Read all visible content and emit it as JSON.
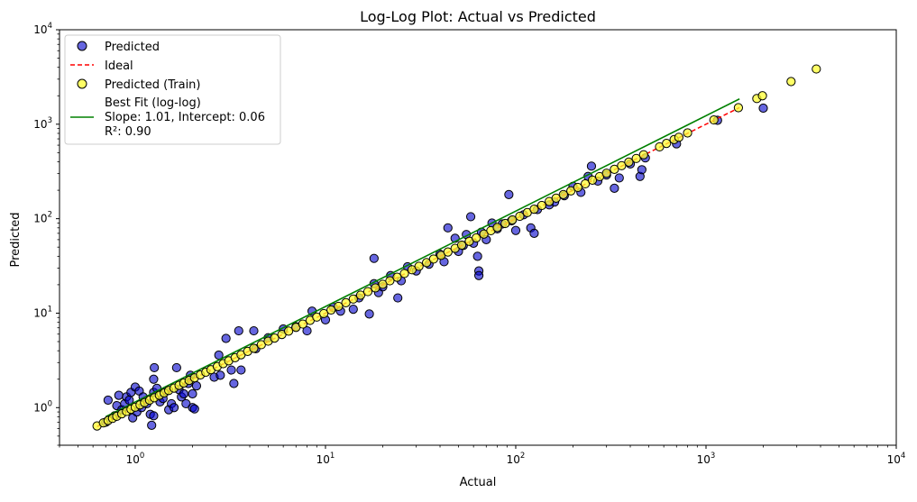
{
  "chart_data": {
    "type": "scatter",
    "title": "Log-Log Plot: Actual vs Predicted",
    "xlabel": "Actual",
    "ylabel": "Predicted",
    "xscale": "log",
    "yscale": "log",
    "xlim": [
      0.4,
      10000
    ],
    "ylim": [
      0.4,
      10000
    ],
    "x_ticks": [
      {
        "base": "10",
        "exp": "0",
        "value": 1
      },
      {
        "base": "10",
        "exp": "1",
        "value": 10
      },
      {
        "base": "10",
        "exp": "2",
        "value": 100
      },
      {
        "base": "10",
        "exp": "3",
        "value": 1000
      },
      {
        "base": "10",
        "exp": "4",
        "value": 10000
      }
    ],
    "y_ticks": [
      {
        "base": "10",
        "exp": "0",
        "value": 1
      },
      {
        "base": "10",
        "exp": "1",
        "value": 10
      },
      {
        "base": "10",
        "exp": "2",
        "value": 100
      },
      {
        "base": "10",
        "exp": "3",
        "value": 1000
      },
      {
        "base": "10",
        "exp": "4",
        "value": 10000
      }
    ],
    "grid": false,
    "legend": {
      "position": "top-left",
      "entries": [
        {
          "label": "Predicted",
          "marker": "circle"
        },
        {
          "label": "Ideal",
          "marker": "dashed-line"
        },
        {
          "label": "Predicted (Train)",
          "marker": "circle"
        },
        {
          "label_lines": [
            "Best Fit (log-log)",
            "Slope: 1.01, Intercept: 0.06",
            "R²: 0.90"
          ],
          "marker": "line"
        }
      ]
    },
    "colors": {
      "predicted": "#0000cc",
      "train": "#ffff33",
      "ideal": "#ff0000",
      "fit": "#008000"
    },
    "ideal_line": {
      "x": [
        0.63,
        1500
      ],
      "y": [
        0.63,
        1500
      ]
    },
    "best_fit": {
      "slope": 1.01,
      "intercept": 0.06,
      "r2": 0.9,
      "x_range": [
        0.7,
        1500
      ]
    },
    "series": [
      {
        "name": "Predicted",
        "points": [
          [
            0.7,
            0.7
          ],
          [
            0.72,
            1.2
          ],
          [
            0.78,
            0.82
          ],
          [
            0.8,
            1.05
          ],
          [
            0.82,
            1.35
          ],
          [
            0.85,
            0.95
          ],
          [
            0.88,
            1.1
          ],
          [
            0.9,
            1.3
          ],
          [
            0.93,
            1.2
          ],
          [
            0.95,
            1.45
          ],
          [
            0.97,
            0.78
          ],
          [
            1.0,
            1.65
          ],
          [
            1.02,
            0.9
          ],
          [
            1.05,
            1.5
          ],
          [
            1.08,
            1.0
          ],
          [
            1.1,
            1.3
          ],
          [
            1.15,
            1.1
          ],
          [
            1.2,
            0.85
          ],
          [
            1.22,
            0.65
          ],
          [
            1.25,
            0.82
          ],
          [
            1.25,
            1.45
          ],
          [
            1.25,
            2.0
          ],
          [
            1.26,
            2.65
          ],
          [
            1.3,
            1.6
          ],
          [
            1.35,
            1.15
          ],
          [
            1.4,
            1.25
          ],
          [
            1.45,
            1.5
          ],
          [
            1.5,
            0.95
          ],
          [
            1.55,
            1.1
          ],
          [
            1.6,
            1.0
          ],
          [
            1.65,
            2.65
          ],
          [
            1.7,
            1.55
          ],
          [
            1.75,
            1.3
          ],
          [
            1.8,
            1.4
          ],
          [
            1.85,
            1.1
          ],
          [
            1.9,
            1.8
          ],
          [
            1.95,
            2.2
          ],
          [
            2.0,
            1.4
          ],
          [
            2.0,
            1.0
          ],
          [
            2.05,
            0.97
          ],
          [
            2.1,
            1.7
          ],
          [
            2.6,
            2.1
          ],
          [
            2.75,
            3.6
          ],
          [
            2.8,
            2.2
          ],
          [
            3.0,
            5.4
          ],
          [
            3.2,
            2.5
          ],
          [
            3.3,
            1.8
          ],
          [
            3.5,
            6.5
          ],
          [
            3.6,
            2.5
          ],
          [
            4.2,
            6.5
          ],
          [
            4.3,
            4.2
          ],
          [
            5.0,
            5.5
          ],
          [
            6.0,
            6.8
          ],
          [
            7.0,
            7.2
          ],
          [
            8.0,
            6.5
          ],
          [
            8.5,
            10.5
          ],
          [
            10.0,
            8.5
          ],
          [
            11.0,
            11.5
          ],
          [
            12.0,
            10.5
          ],
          [
            14.0,
            11.0
          ],
          [
            15.0,
            14.5
          ],
          [
            17.0,
            9.8
          ],
          [
            18.0,
            20.5
          ],
          [
            18.0,
            38.0
          ],
          [
            19.0,
            16.5
          ],
          [
            20.0,
            19.0
          ],
          [
            22.0,
            25.0
          ],
          [
            24.0,
            14.5
          ],
          [
            25.0,
            22.0
          ],
          [
            27.0,
            31.0
          ],
          [
            30.0,
            28.0
          ],
          [
            35.0,
            33.0
          ],
          [
            40.0,
            42.0
          ],
          [
            42.0,
            35.0
          ],
          [
            44.0,
            80.0
          ],
          [
            48.0,
            62.0
          ],
          [
            50.0,
            45.0
          ],
          [
            53.0,
            52.0
          ],
          [
            55.0,
            68.0
          ],
          [
            58.0,
            105.0
          ],
          [
            60.0,
            55.0
          ],
          [
            63.0,
            40.0
          ],
          [
            64.0,
            28.0
          ],
          [
            64.0,
            25.0
          ],
          [
            66.0,
            72.0
          ],
          [
            70.0,
            60.0
          ],
          [
            75.0,
            90.0
          ],
          [
            80.0,
            78.0
          ],
          [
            85.0,
            88.0
          ],
          [
            92.0,
            180.0
          ],
          [
            95.0,
            95.0
          ],
          [
            100.0,
            75.0
          ],
          [
            110.0,
            110.0
          ],
          [
            120.0,
            80.0
          ],
          [
            125.0,
            70.0
          ],
          [
            130.0,
            125.0
          ],
          [
            150.0,
            140.0
          ],
          [
            160.0,
            150.0
          ],
          [
            180.0,
            175.0
          ],
          [
            200.0,
            220.0
          ],
          [
            220.0,
            190.0
          ],
          [
            240.0,
            280.0
          ],
          [
            250.0,
            360.0
          ],
          [
            270.0,
            250.0
          ],
          [
            300.0,
            290.0
          ],
          [
            330.0,
            210.0
          ],
          [
            350.0,
            270.0
          ],
          [
            400.0,
            380.0
          ],
          [
            450.0,
            280.0
          ],
          [
            460.0,
            330.0
          ],
          [
            480.0,
            440.0
          ],
          [
            700.0,
            620.0
          ],
          [
            1150.0,
            1100.0
          ],
          [
            2000.0,
            1480.0
          ]
        ]
      },
      {
        "name": "Predicted (Train)",
        "points": [
          [
            0.63,
            0.64
          ],
          [
            0.68,
            0.69
          ],
          [
            0.72,
            0.73
          ],
          [
            0.76,
            0.77
          ],
          [
            0.8,
            0.81
          ],
          [
            0.85,
            0.86
          ],
          [
            0.9,
            0.91
          ],
          [
            0.95,
            0.96
          ],
          [
            1.0,
            1.01
          ],
          [
            1.06,
            1.07
          ],
          [
            1.12,
            1.13
          ],
          [
            1.19,
            1.2
          ],
          [
            1.26,
            1.27
          ],
          [
            1.34,
            1.35
          ],
          [
            1.42,
            1.43
          ],
          [
            1.5,
            1.52
          ],
          [
            1.6,
            1.61
          ],
          [
            1.7,
            1.72
          ],
          [
            1.8,
            1.82
          ],
          [
            1.92,
            1.94
          ],
          [
            2.05,
            2.07
          ],
          [
            2.2,
            2.22
          ],
          [
            2.35,
            2.37
          ],
          [
            2.5,
            2.52
          ],
          [
            2.7,
            2.72
          ],
          [
            2.9,
            2.92
          ],
          [
            3.1,
            3.13
          ],
          [
            3.35,
            3.38
          ],
          [
            3.6,
            3.63
          ],
          [
            3.9,
            3.94
          ],
          [
            4.2,
            4.24
          ],
          [
            4.6,
            4.64
          ],
          [
            5.0,
            5.05
          ],
          [
            5.4,
            5.45
          ],
          [
            5.9,
            5.95
          ],
          [
            6.4,
            6.46
          ],
          [
            7.0,
            7.07
          ],
          [
            7.6,
            7.67
          ],
          [
            8.3,
            8.38
          ],
          [
            9.0,
            9.09
          ],
          [
            9.8,
            9.9
          ],
          [
            10.7,
            10.8
          ],
          [
            11.7,
            11.8
          ],
          [
            12.8,
            12.9
          ],
          [
            14.0,
            14.1
          ],
          [
            15.3,
            15.5
          ],
          [
            16.7,
            16.9
          ],
          [
            18.3,
            18.5
          ],
          [
            20.0,
            20.2
          ],
          [
            21.8,
            22.0
          ],
          [
            23.8,
            24.0
          ],
          [
            26.0,
            26.3
          ],
          [
            28.5,
            28.8
          ],
          [
            31.0,
            31.3
          ],
          [
            34.0,
            34.3
          ],
          [
            37.0,
            37.4
          ],
          [
            40.5,
            40.9
          ],
          [
            44.0,
            44.4
          ],
          [
            48.0,
            48.5
          ],
          [
            52.0,
            52.5
          ],
          [
            57.0,
            57.6
          ],
          [
            62.0,
            62.6
          ],
          [
            68.0,
            68.7
          ],
          [
            74.0,
            74.7
          ],
          [
            80.0,
            80.8
          ],
          [
            88.0,
            88.9
          ],
          [
            96.0,
            97.0
          ],
          [
            105.0,
            106.0
          ],
          [
            115.0,
            116.0
          ],
          [
            125.0,
            126.0
          ],
          [
            137.0,
            138.0
          ],
          [
            150.0,
            152.0
          ],
          [
            163.0,
            165.0
          ],
          [
            178.0,
            180.0
          ],
          [
            195.0,
            197.0
          ],
          [
            212.0,
            214.0
          ],
          [
            232.0,
            234.0
          ],
          [
            253.0,
            256.0
          ],
          [
            276.0,
            279.0
          ],
          [
            300.0,
            303.0
          ],
          [
            330.0,
            333.0
          ],
          [
            360.0,
            364.0
          ],
          [
            393.0,
            397.0
          ],
          [
            430.0,
            434.0
          ],
          [
            470.0,
            475.0
          ],
          [
            570.0,
            576.0
          ],
          [
            620.0,
            626.0
          ],
          [
            680.0,
            687.0
          ],
          [
            720.0,
            727.0
          ],
          [
            800.0,
            808.0
          ],
          [
            1100.0,
            1110.0
          ],
          [
            1480.0,
            1495.0
          ],
          [
            1850.0,
            1870.0
          ],
          [
            1980.0,
            2000.0
          ],
          [
            2800.0,
            2830.0
          ],
          [
            3800.0,
            3840.0
          ]
        ]
      }
    ]
  }
}
